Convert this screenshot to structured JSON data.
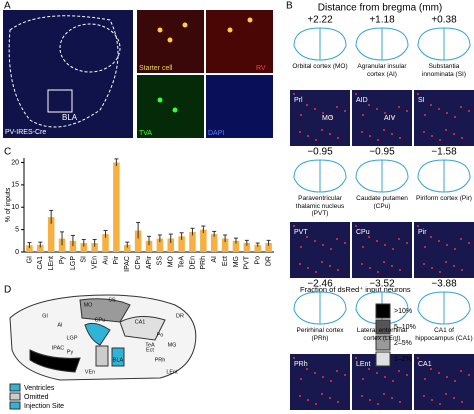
{
  "panel_a": {
    "label": "A",
    "mouse_line": "PV-IRES-Cre",
    "region": "BLA",
    "channels": [
      "Starter cell",
      "RV",
      "TVA",
      "DAPI"
    ]
  },
  "panel_b": {
    "label": "B",
    "title": "Distance from bregma (mm)",
    "sections": [
      {
        "bregma": "+2.22",
        "region": "Orbital cortex (MO)",
        "image_labels": [
          "Prl",
          "MO"
        ]
      },
      {
        "bregma": "+1.18",
        "region": "Agranular insular cortex (AI)",
        "image_labels": [
          "AID",
          "AIV"
        ]
      },
      {
        "bregma": "+0.38",
        "region": "Substantia innominata (SI)",
        "image_labels": [
          "SI"
        ]
      },
      {
        "bregma": "−0.95",
        "region": "Paraventricular thalamic nucleus (PVT)",
        "image_labels": [
          "PVT"
        ]
      },
      {
        "bregma": "−0.95",
        "region": "Caudate putamen (CPu)",
        "image_labels": [
          "CPu"
        ]
      },
      {
        "bregma": "−1.58",
        "region": "Piriform cortex (Pir)",
        "image_labels": [
          "Pir"
        ]
      },
      {
        "bregma": "−2.46",
        "region": "Perirhinal cortex (PRh)",
        "image_labels": [
          "PRh"
        ]
      },
      {
        "bregma": "−3.52",
        "region": "Lateral entorhinal cortex (LEnt)",
        "image_labels": [
          "LEnt"
        ]
      },
      {
        "bregma": "−3.88",
        "region": "CA1 of hippocampus (CA1)",
        "image_labels": [
          "CA1"
        ]
      }
    ]
  },
  "chart_data": {
    "panel_label": "C",
    "type": "bar",
    "y_label": "% of inputs",
    "categories": [
      "GI",
      "CA1",
      "LEnt",
      "Py",
      "LGP",
      "SI",
      "VEn",
      "Au",
      "Pir",
      "IPAC",
      "CPu",
      "APir",
      "SS",
      "MO",
      "TeA",
      "DEn",
      "PRh",
      "AI",
      "Ect",
      "MG",
      "PVT",
      "Po",
      "DR"
    ],
    "values": [
      1.5,
      1.6,
      7.8,
      3,
      2.5,
      2,
      2,
      4,
      20,
      1.6,
      4.8,
      2.5,
      3,
      3,
      3.5,
      4.5,
      5,
      4,
      3,
      2.5,
      2,
      1.6,
      2
    ],
    "errors": [
      0.6,
      0.6,
      1.5,
      1.5,
      1.2,
      0.8,
      0.8,
      0.8,
      0.8,
      0.6,
      1.8,
      1,
      0.8,
      1,
      0.8,
      0.8,
      0.8,
      0.6,
      0.8,
      0.6,
      0.6,
      0.4,
      0.6
    ],
    "color": "#f5b041",
    "ylim": [
      0,
      21
    ],
    "yticks": [
      0,
      5,
      10,
      15,
      20
    ]
  },
  "panel_d": {
    "label": "D",
    "legend_title": "Fraction of dsRed⁺ input neurons",
    "levels": [
      ">10%",
      "5–10%",
      "2–5%",
      "1–2%"
    ],
    "level_colors": [
      "#000000",
      "#555555",
      "#9a9a9a",
      "#e0e0e0"
    ],
    "key": [
      "Ventricles",
      "Omitted",
      "Injection Site"
    ],
    "regions": [
      "MO",
      "SS",
      "CA1",
      "DR",
      "Po",
      "AI",
      "LGP",
      "CPu",
      "GI",
      "IPAC",
      "Py",
      "Ect",
      "PRh",
      "TeA",
      "MG",
      "Pir",
      "VEn",
      "BLA",
      "LEnt"
    ]
  }
}
